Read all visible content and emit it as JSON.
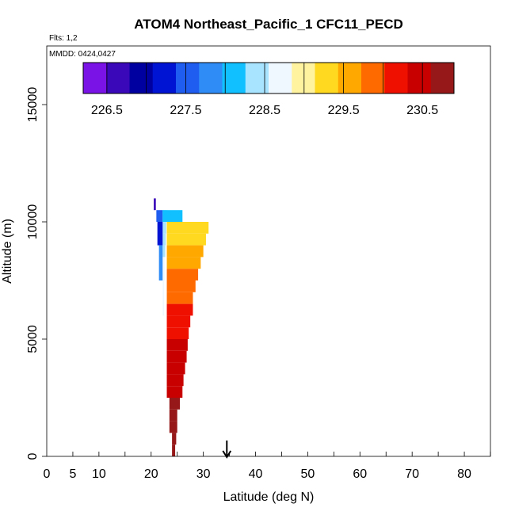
{
  "chart_data": {
    "type": "bar",
    "title": "ATOM4 Northeast_Pacific_1 CFC11_PECD",
    "flights_label": "Flts: 1,2",
    "dates_label": "MMDD: 0424,0427",
    "xlabel": "Latitude (deg N)",
    "ylabel": "Altitude (m)",
    "xlim": [
      0,
      85
    ],
    "ylim": [
      0,
      17500
    ],
    "x_tick_values": [
      0,
      5,
      10,
      20,
      30,
      40,
      50,
      60,
      70,
      80
    ],
    "x_tick_labels": [
      "0",
      "5",
      "10",
      "20",
      "30",
      "40",
      "50",
      "60",
      "70",
      "80"
    ],
    "x_minor_ticks": [
      5,
      10,
      15,
      20,
      25,
      30,
      35,
      40,
      45,
      50,
      55,
      60,
      65,
      70,
      75,
      80,
      85
    ],
    "y_tick_values": [
      0,
      5000,
      10000,
      15000
    ],
    "y_tick_labels": [
      "0",
      "5000",
      "10000",
      "15000"
    ],
    "colorbar": {
      "min": 226.2,
      "max": 230.9,
      "tick_values": [
        226.5,
        227.5,
        228.5,
        229.5,
        230.5
      ],
      "tick_labels": [
        "226.5",
        "227.5",
        "228.5",
        "229.5",
        "230.5"
      ],
      "colors": [
        "#7a14e6",
        "#3a08b8",
        "#0000a0",
        "#0014d4",
        "#1f5cf0",
        "#2f8cf7",
        "#10c0ff",
        "#a8e4ff",
        "#f0f8ff",
        "#fff3a0",
        "#ffd820",
        "#ffa800",
        "#ff6a00",
        "#f01000",
        "#c80000",
        "#961818"
      ]
    },
    "arrow_latitude": 34.5,
    "series": [
      {
        "name": "profile 1",
        "bars": [
          {
            "lat_start": 22.2,
            "lat_end": 23.0,
            "alt_start": 10000,
            "alt_end": 10500,
            "value": 228.3
          },
          {
            "lat_start": 22.2,
            "lat_end": 22.9,
            "alt_start": 9500,
            "alt_end": 10000,
            "value": 228.3
          },
          {
            "lat_start": 22.2,
            "lat_end": 22.8,
            "alt_start": 9000,
            "alt_end": 9500,
            "value": 228.4
          },
          {
            "lat_start": 22.2,
            "lat_end": 22.7,
            "alt_start": 8500,
            "alt_end": 9000,
            "value": 228.5
          },
          {
            "lat_start": 22.2,
            "lat_end": 22.6,
            "alt_start": 8000,
            "alt_end": 8500,
            "value": 228.6
          },
          {
            "lat_start": 22.2,
            "lat_end": 22.6,
            "alt_start": 7500,
            "alt_end": 8000,
            "value": 228.7
          },
          {
            "lat_start": 22.2,
            "lat_end": 22.5,
            "alt_start": 6000,
            "alt_end": 7500,
            "value": 228.8
          }
        ]
      },
      {
        "name": "profile 2",
        "bars": [
          {
            "lat_start": 21.0,
            "lat_end": 22.2,
            "alt_start": 10000,
            "alt_end": 10500,
            "value": 227.5
          },
          {
            "lat_start": 22.2,
            "lat_end": 26.0,
            "alt_start": 10000,
            "alt_end": 10500,
            "value": 228.2
          },
          {
            "lat_start": 21.2,
            "lat_end": 22.2,
            "alt_start": 9000,
            "alt_end": 10000,
            "value": 227.3
          },
          {
            "lat_start": 21.5,
            "lat_end": 22.2,
            "alt_start": 7500,
            "alt_end": 9000,
            "value": 227.9
          },
          {
            "lat_start": 20.5,
            "lat_end": 20.9,
            "alt_start": 10500,
            "alt_end": 11000,
            "value": 226.6
          }
        ]
      },
      {
        "name": "profile 3",
        "bars": [
          {
            "lat_start": 23.0,
            "lat_end": 31.0,
            "alt_start": 9500,
            "alt_end": 10000,
            "value": 229.2
          },
          {
            "lat_start": 23.0,
            "lat_end": 30.5,
            "alt_start": 9000,
            "alt_end": 9500,
            "value": 229.4
          },
          {
            "lat_start": 23.0,
            "lat_end": 30.0,
            "alt_start": 8500,
            "alt_end": 9000,
            "value": 229.6
          },
          {
            "lat_start": 23.0,
            "lat_end": 29.5,
            "alt_start": 8000,
            "alt_end": 8500,
            "value": 229.7
          },
          {
            "lat_start": 23.0,
            "lat_end": 29.0,
            "alt_start": 7500,
            "alt_end": 8000,
            "value": 229.8
          },
          {
            "lat_start": 23.0,
            "lat_end": 28.5,
            "alt_start": 7000,
            "alt_end": 7500,
            "value": 229.9
          },
          {
            "lat_start": 23.0,
            "lat_end": 28.0,
            "alt_start": 6500,
            "alt_end": 7000,
            "value": 230.0
          },
          {
            "lat_start": 23.0,
            "lat_end": 28.0,
            "alt_start": 6000,
            "alt_end": 6500,
            "value": 230.1
          },
          {
            "lat_start": 23.0,
            "lat_end": 27.5,
            "alt_start": 5500,
            "alt_end": 6000,
            "value": 230.2
          },
          {
            "lat_start": 23.0,
            "lat_end": 27.2,
            "alt_start": 5000,
            "alt_end": 5500,
            "value": 230.3
          },
          {
            "lat_start": 23.0,
            "lat_end": 27.0,
            "alt_start": 4500,
            "alt_end": 5000,
            "value": 230.4
          },
          {
            "lat_start": 23.0,
            "lat_end": 26.8,
            "alt_start": 4000,
            "alt_end": 4500,
            "value": 230.5
          },
          {
            "lat_start": 23.0,
            "lat_end": 26.5,
            "alt_start": 3500,
            "alt_end": 4000,
            "value": 230.5
          },
          {
            "lat_start": 23.0,
            "lat_end": 26.2,
            "alt_start": 3000,
            "alt_end": 3500,
            "value": 230.6
          },
          {
            "lat_start": 23.0,
            "lat_end": 26.0,
            "alt_start": 2500,
            "alt_end": 3000,
            "value": 230.6
          },
          {
            "lat_start": 23.5,
            "lat_end": 25.5,
            "alt_start": 2000,
            "alt_end": 2500,
            "value": 230.7
          },
          {
            "lat_start": 23.5,
            "lat_end": 25.0,
            "alt_start": 1500,
            "alt_end": 2000,
            "value": 230.7
          },
          {
            "lat_start": 23.5,
            "lat_end": 25.0,
            "alt_start": 1000,
            "alt_end": 1500,
            "value": 230.8
          },
          {
            "lat_start": 24.0,
            "lat_end": 24.8,
            "alt_start": 500,
            "alt_end": 1000,
            "value": 230.9
          },
          {
            "lat_start": 24.0,
            "lat_end": 24.6,
            "alt_start": 0,
            "alt_end": 500,
            "value": 230.9
          }
        ]
      }
    ]
  }
}
